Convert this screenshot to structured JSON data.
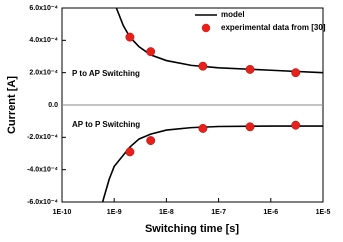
{
  "chart_data": {
    "type": "line",
    "xlabel": "Switching time [s]",
    "ylabel": "Current [A]",
    "log_x": true,
    "xlim": [
      1e-10,
      1e-05
    ],
    "xticks": [
      {
        "value": 1e-10,
        "label": "1E-10"
      },
      {
        "value": 1e-09,
        "label": "1E-9"
      },
      {
        "value": 1e-08,
        "label": "1E-8"
      },
      {
        "value": 1e-07,
        "label": "1E-7"
      },
      {
        "value": 1e-06,
        "label": "1E-6"
      },
      {
        "value": 1e-05,
        "label": "1E-5"
      }
    ],
    "ylim": [
      -0.0006,
      0.0006
    ],
    "yticks": [
      {
        "value": 0.0006,
        "label": "6.0x10⁻⁴"
      },
      {
        "value": 0.0004,
        "label": "4.0x10⁻⁴"
      },
      {
        "value": 0.0002,
        "label": "2.0x10⁻⁴"
      },
      {
        "value": 0,
        "label": "0.0"
      },
      {
        "value": -0.0002,
        "label": "-2.0x10⁻⁴"
      },
      {
        "value": -0.0004,
        "label": "-4.0x10⁻⁴"
      },
      {
        "value": -0.0006,
        "label": "-6.0x10⁻⁴"
      }
    ],
    "annotations": [
      "P to AP Switching",
      "AP to P Switching"
    ],
    "legend": "top-right",
    "series": [
      {
        "name": "model",
        "color": "#000000",
        "style": "line",
        "x": [
          1.1e-09,
          1.5e-09,
          2e-09,
          3e-09,
          5e-09,
          1e-08,
          3e-08,
          1e-07,
          1e-06,
          1e-05,
          null,
          6e-10,
          8e-10,
          1e-09,
          2e-09,
          3e-09,
          5e-09,
          1e-08,
          3e-08,
          1e-07,
          1e-06,
          1e-05
        ],
        "values": [
          0.0006,
          0.00049,
          0.00042,
          0.00036,
          0.00031,
          0.000275,
          0.000245,
          0.00023,
          0.000215,
          0.0002,
          null,
          -0.0006,
          -0.00046,
          -0.00038,
          -0.00026,
          -0.00021,
          -0.00018,
          -0.000155,
          -0.00014,
          -0.000133,
          -0.00013,
          -0.00013
        ]
      },
      {
        "name": "experimental data from [30]",
        "color": "#e8201a",
        "style": "scatter",
        "x": [
          2e-09,
          5e-09,
          5e-08,
          4e-07,
          3e-06,
          2e-09,
          5e-09,
          5e-08,
          4e-07,
          3e-06
        ],
        "values": [
          0.00042,
          0.00033,
          0.00024,
          0.00022,
          0.0002,
          -0.00029,
          -0.00022,
          -0.000145,
          -0.000135,
          -0.000125
        ]
      }
    ]
  }
}
